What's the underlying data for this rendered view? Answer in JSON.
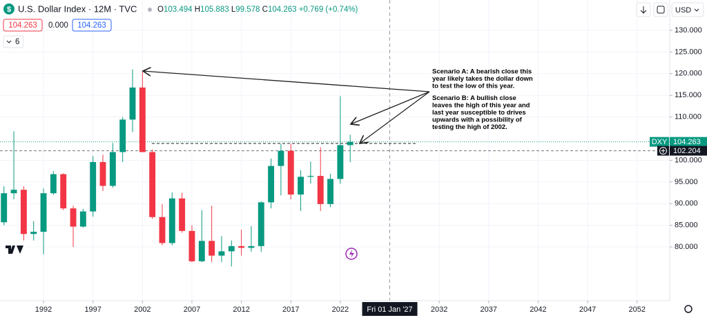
{
  "header": {
    "symbol": "U.S. Dollar Index · 12M · TVC",
    "ohlc_labels": [
      "O",
      "H",
      "L",
      "C"
    ],
    "change": "+0.769 (+0.74%)",
    "spread": "0.000",
    "indicators": "6",
    "currency": "USD"
  },
  "chart_data": {
    "type": "candlestick",
    "x": [
      1988,
      1989,
      1990,
      1991,
      1992,
      1993,
      1994,
      1995,
      1996,
      1997,
      1998,
      1999,
      2000,
      2001,
      2002,
      2003,
      2004,
      2005,
      2006,
      2007,
      2008,
      2009,
      2010,
      2011,
      2012,
      2013,
      2014,
      2015,
      2016,
      2017,
      2018,
      2019,
      2020,
      2021,
      2022,
      2023
    ],
    "open": [
      85.7,
      92.4,
      93.2,
      83.0,
      83.5,
      92.4,
      96.8,
      88.9,
      84.7,
      88.2,
      99.6,
      94.1,
      101.9,
      109.4,
      116.8,
      101.9,
      86.9,
      80.9,
      91.2,
      83.7,
      76.7,
      81.4,
      78.0,
      79.0,
      80.2,
      79.8,
      80.2,
      90.3,
      98.7,
      102.2,
      92.1,
      96.2,
      96.4,
      89.9,
      95.7,
      103.494
    ],
    "high": [
      94.0,
      106.7,
      94.0,
      86.0,
      93.5,
      97.5,
      97.0,
      89.5,
      88.8,
      101.0,
      101.3,
      104.0,
      110.0,
      121.0,
      120.5,
      102.5,
      89.9,
      92.6,
      92.5,
      85.0,
      88.5,
      89.5,
      82.5,
      81.5,
      84.0,
      84.8,
      90.5,
      100.4,
      103.8,
      103.8,
      97.7,
      99.7,
      103.0,
      96.9,
      114.8,
      105.883
    ],
    "low": [
      85.0,
      91.0,
      81.5,
      81.5,
      78.3,
      92.0,
      88.5,
      80.0,
      84.5,
      87.0,
      92.9,
      93.7,
      99.6,
      106.5,
      101.9,
      86.5,
      80.4,
      80.4,
      83.3,
      76.5,
      76.5,
      76.5,
      76.5,
      75.5,
      78.0,
      78.9,
      78.9,
      88.9,
      91.9,
      91.0,
      88.3,
      94.6,
      88.3,
      89.2,
      94.6,
      99.578
    ],
    "close": [
      92.4,
      93.2,
      83.0,
      83.5,
      92.4,
      96.8,
      88.9,
      84.7,
      88.2,
      99.6,
      94.1,
      101.9,
      109.4,
      116.8,
      101.9,
      86.9,
      80.9,
      91.2,
      83.7,
      76.7,
      81.4,
      78.0,
      79.0,
      80.2,
      79.8,
      80.2,
      90.3,
      98.7,
      102.2,
      92.1,
      96.2,
      96.4,
      89.9,
      95.7,
      103.5,
      104.263
    ],
    "up_color": "#089981",
    "down_color": "#f23645",
    "xlim": [
      1987.6,
      2055.3
    ],
    "ylim": [
      67.6,
      137.0
    ],
    "xticks": [
      1992,
      1997,
      2002,
      2007,
      2012,
      2017,
      2022,
      2032,
      2037,
      2042,
      2047,
      2052
    ],
    "yticks": [
      {
        "value": 80,
        "label": "80.000"
      },
      {
        "value": 85,
        "label": "85.000"
      },
      {
        "value": 90,
        "label": "90.000"
      },
      {
        "value": 95,
        "label": "95.000"
      },
      {
        "value": 100,
        "label": "100.000"
      },
      {
        "value": 110,
        "label": "110.000"
      },
      {
        "value": 115,
        "label": "115.000"
      },
      {
        "value": 120,
        "label": "120.000"
      },
      {
        "value": 125,
        "label": "125.000"
      },
      {
        "value": 130,
        "label": "130.000"
      }
    ],
    "grid": true,
    "price_lines": [
      {
        "name": "DXY",
        "value": 104.263,
        "color": "#089981"
      },
      {
        "value": 102.204,
        "color": "#131722"
      }
    ],
    "crosshair": {
      "x": 2027,
      "label": "Fri 01 Jan '27"
    },
    "annotation": {
      "scenario_a": [
        "Scenario A: A bearish close this",
        "year likely takes the dollar down",
        "to test the low of this year."
      ],
      "scenario_b": [
        "Scenario B: A bullish close",
        "leaves the high of this year and",
        "last year susceptible to drives",
        "upwards with a possibility of",
        "testing the high of 2002."
      ]
    }
  }
}
